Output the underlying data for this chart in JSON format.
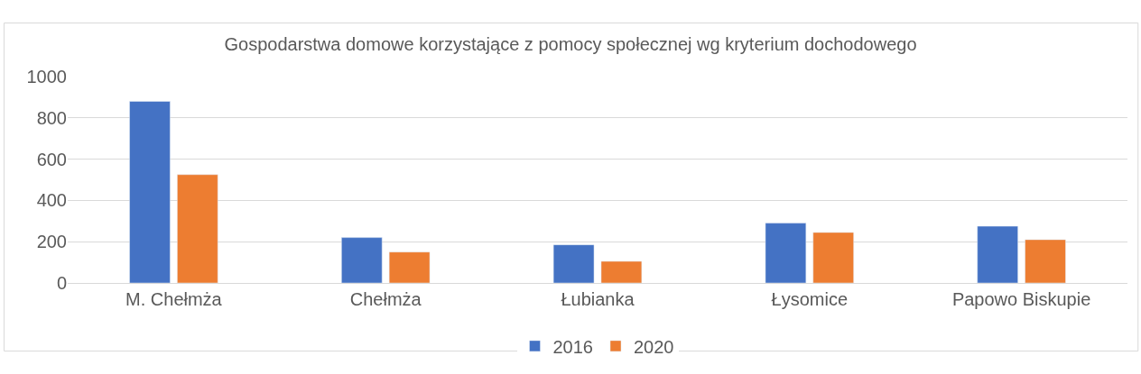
{
  "chart_data": {
    "type": "bar",
    "title": "Gospodarstwa domowe korzystające z pomocy społecznej wg kryterium dochodowego",
    "categories": [
      "M. Chełmża",
      "Chełmża",
      "Łubianka",
      "Łysomice",
      "Papowo Biskupie"
    ],
    "series": [
      {
        "name": "2016",
        "color": "#4472c4",
        "values": [
          880,
          220,
          185,
          290,
          275
        ]
      },
      {
        "name": "2020",
        "color": "#ed7d31",
        "values": [
          525,
          150,
          105,
          245,
          210
        ]
      }
    ],
    "ylim": [
      0,
      1000
    ],
    "yticks": [
      0,
      200,
      400,
      600,
      800,
      1000
    ],
    "grid": "y",
    "legend": "bottom"
  }
}
